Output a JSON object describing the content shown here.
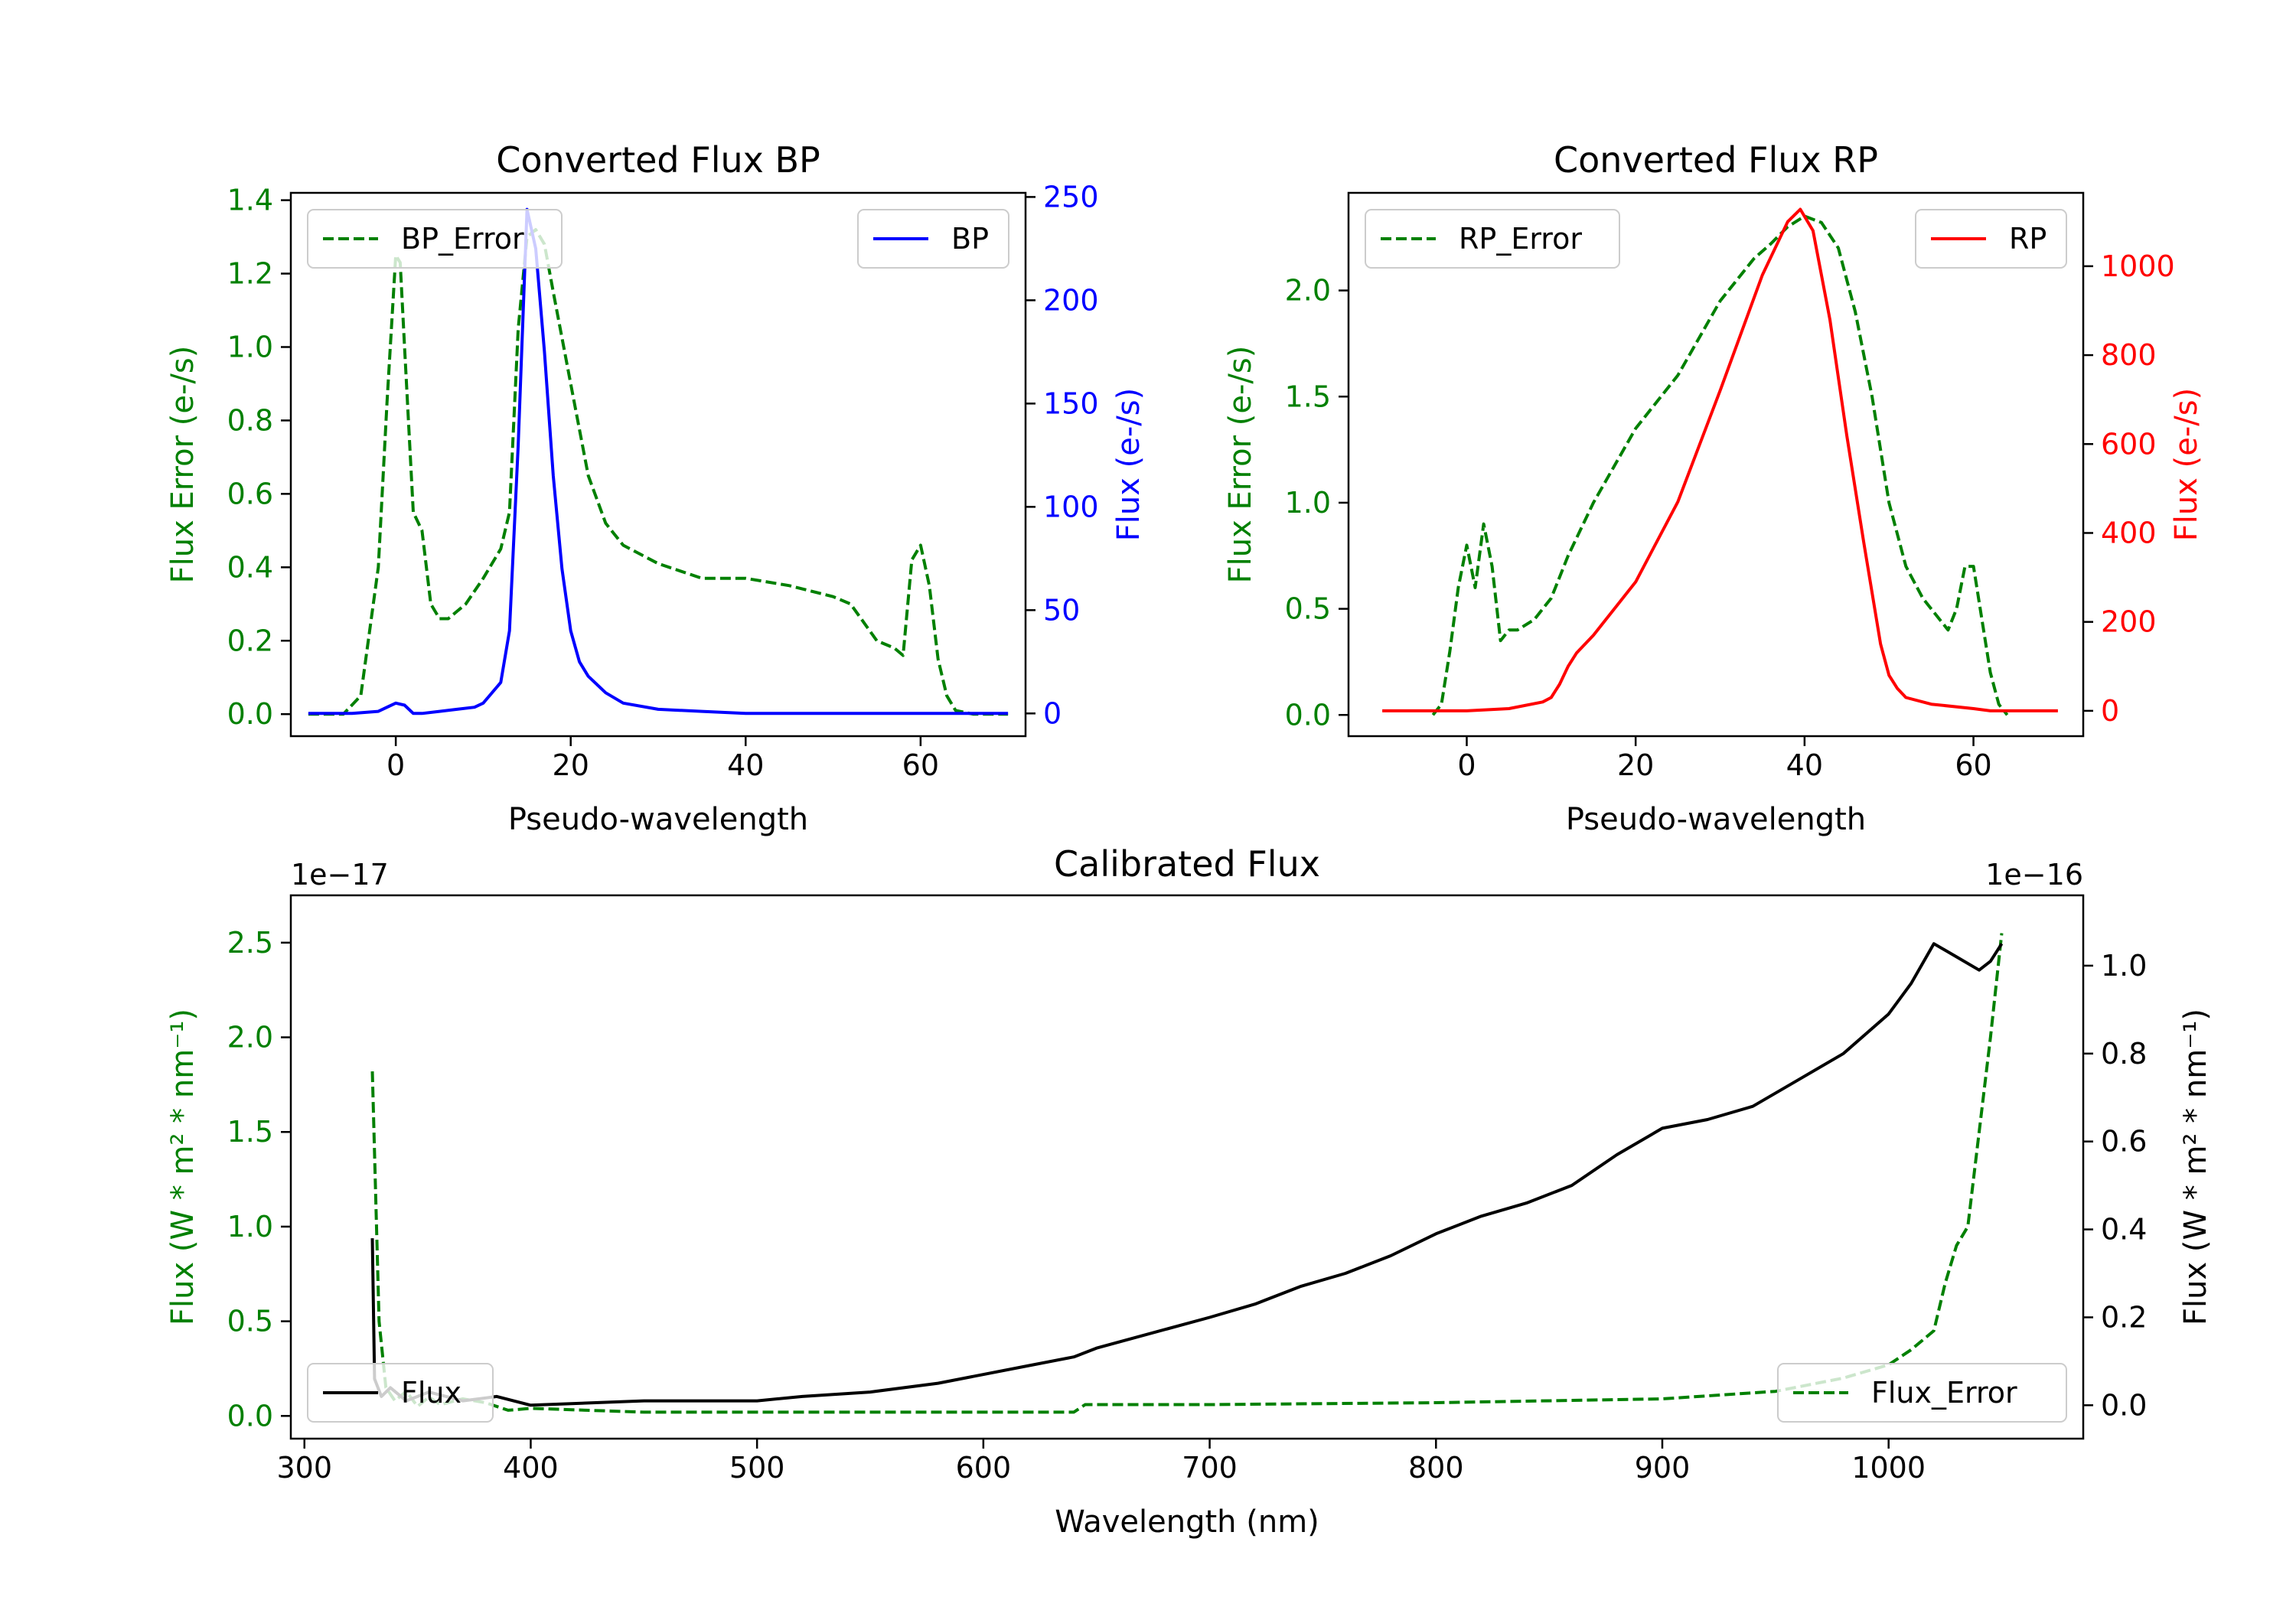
{
  "chart_data": [
    {
      "type": "line",
      "title": "Converted Flux BP",
      "xlabel": "Pseudo-wavelength",
      "ylabel_left": "Flux Error (e-/s)",
      "ylabel_right": "Flux (e-/s)",
      "xlim": [
        -12,
        72
      ],
      "ylim_left": [
        -0.06,
        1.42
      ],
      "ylim_right": [
        -11,
        252
      ],
      "xticks": [
        0,
        20,
        40,
        60
      ],
      "yticks_left": [
        0.0,
        0.2,
        0.4,
        0.6,
        0.8,
        1.0,
        1.2,
        1.4
      ],
      "yticks_left_labels": [
        "0.0",
        "0.2",
        "0.4",
        "0.6",
        "0.8",
        "1.0",
        "1.2",
        "1.4"
      ],
      "yticks_right": [
        0,
        50,
        100,
        150,
        200,
        250
      ],
      "yticks_right_labels": [
        "0",
        "50",
        "100",
        "150",
        "200",
        "250"
      ],
      "colors": {
        "left": "#008000",
        "right": "#0000ff"
      },
      "series": [
        {
          "name": "BP_Error",
          "axis": "left",
          "style": "dashed",
          "color": "#008000",
          "x": [
            -10,
            -6,
            -4,
            -2,
            -1,
            0,
            0.5,
            1,
            2,
            3,
            4,
            5,
            6,
            7,
            8,
            10,
            12,
            13,
            14,
            15,
            16,
            17,
            18,
            20,
            22,
            24,
            26,
            30,
            35,
            40,
            45,
            50,
            52,
            55,
            57,
            58,
            59,
            60,
            61,
            62,
            63,
            64,
            66,
            68,
            70
          ],
          "y": [
            0.0,
            0.0,
            0.05,
            0.4,
            0.85,
            1.25,
            1.23,
            1.0,
            0.55,
            0.5,
            0.3,
            0.26,
            0.26,
            0.28,
            0.3,
            0.37,
            0.45,
            0.55,
            1.05,
            1.3,
            1.32,
            1.28,
            1.15,
            0.9,
            0.65,
            0.52,
            0.46,
            0.41,
            0.37,
            0.37,
            0.35,
            0.32,
            0.3,
            0.2,
            0.18,
            0.16,
            0.42,
            0.46,
            0.35,
            0.15,
            0.05,
            0.01,
            0.0,
            0.0,
            0.0
          ]
        },
        {
          "name": "BP",
          "axis": "right",
          "style": "solid",
          "color": "#0000ff",
          "x": [
            -10,
            -5,
            -2,
            0,
            1,
            2,
            3,
            5,
            7,
            9,
            10,
            12,
            13,
            14,
            15,
            16,
            17,
            18,
            19,
            20,
            21,
            22,
            24,
            26,
            30,
            35,
            40,
            45,
            50,
            55,
            60,
            65,
            70
          ],
          "y": [
            0,
            0,
            1,
            5,
            4,
            0,
            0,
            1,
            2,
            3,
            5,
            15,
            40,
            130,
            244,
            225,
            175,
            115,
            70,
            40,
            25,
            18,
            10,
            5,
            2,
            1,
            0,
            0,
            0,
            0,
            0,
            0,
            0
          ]
        }
      ],
      "legend": [
        {
          "label": "BP_Error",
          "position": "upper-left"
        },
        {
          "label": "BP",
          "position": "upper-right"
        }
      ]
    },
    {
      "type": "line",
      "title": "Converted Flux RP",
      "xlabel": "Pseudo-wavelength",
      "ylabel_left": "Flux Error (e-/s)",
      "ylabel_right": "Flux (e-/s)",
      "xlim": [
        -14,
        73
      ],
      "ylim_left": [
        -0.1,
        2.46
      ],
      "ylim_right": [
        -57,
        1165
      ],
      "xticks": [
        0,
        20,
        40,
        60
      ],
      "yticks_left": [
        0.0,
        0.5,
        1.0,
        1.5,
        2.0
      ],
      "yticks_left_labels": [
        "0.0",
        "0.5",
        "1.0",
        "1.5",
        "2.0"
      ],
      "yticks_right": [
        0,
        200,
        400,
        600,
        800,
        1000
      ],
      "yticks_right_labels": [
        "0",
        "200",
        "400",
        "600",
        "800",
        "1000"
      ],
      "colors": {
        "left": "#008000",
        "right": "#ff0000"
      },
      "series": [
        {
          "name": "RP_Error",
          "axis": "left",
          "style": "dashed",
          "color": "#008000",
          "x": [
            -4,
            -3,
            -2,
            -1,
            0,
            1,
            2,
            3,
            4,
            5,
            6,
            8,
            10,
            12,
            15,
            20,
            25,
            30,
            34,
            36,
            38,
            40,
            42,
            44,
            46,
            48,
            50,
            52,
            54,
            56,
            57,
            58,
            59,
            60,
            61,
            62,
            63,
            64
          ],
          "y": [
            0.0,
            0.05,
            0.3,
            0.6,
            0.8,
            0.6,
            0.9,
            0.7,
            0.35,
            0.4,
            0.4,
            0.45,
            0.55,
            0.75,
            1.0,
            1.35,
            1.6,
            1.95,
            2.15,
            2.22,
            2.3,
            2.35,
            2.32,
            2.2,
            1.9,
            1.5,
            1.0,
            0.7,
            0.55,
            0.45,
            0.4,
            0.5,
            0.7,
            0.7,
            0.45,
            0.2,
            0.05,
            0.0
          ]
        },
        {
          "name": "RP",
          "axis": "right",
          "style": "solid",
          "color": "#ff0000",
          "x": [
            -10,
            -5,
            0,
            5,
            9,
            10,
            11,
            12,
            13,
            15,
            20,
            25,
            30,
            35,
            38,
            39.5,
            41,
            43,
            45,
            47,
            49,
            50,
            51,
            52,
            55,
            60,
            62,
            65,
            70
          ],
          "y": [
            0,
            0,
            0,
            5,
            20,
            30,
            60,
            100,
            130,
            170,
            290,
            470,
            720,
            980,
            1100,
            1128,
            1080,
            880,
            620,
            380,
            150,
            80,
            50,
            30,
            15,
            5,
            0,
            0,
            0
          ]
        }
      ],
      "legend": [
        {
          "label": "RP_Error",
          "position": "upper-left"
        },
        {
          "label": "RP",
          "position": "upper-right"
        }
      ]
    },
    {
      "type": "line",
      "title": "Calibrated Flux",
      "xlabel": "Wavelength (nm)",
      "ylabel_left": "Flux (W * m² * nm⁻¹)",
      "ylabel_right": "Flux (W * m² * nm⁻¹)",
      "offset_left": "1e−17",
      "offset_right": "1e−16",
      "xlim": [
        294,
        1086
      ],
      "ylim_left": [
        -0.12,
        2.75
      ],
      "ylim_right": [
        -0.076,
        1.16
      ],
      "xticks": [
        300,
        400,
        500,
        600,
        700,
        800,
        900,
        1000
      ],
      "yticks_left": [
        0.0,
        0.5,
        1.0,
        1.5,
        2.0,
        2.5
      ],
      "yticks_left_labels": [
        "0.0",
        "0.5",
        "1.0",
        "1.5",
        "2.0",
        "2.5"
      ],
      "yticks_right": [
        0.0,
        0.2,
        0.4,
        0.6,
        0.8,
        1.0
      ],
      "yticks_right_labels": [
        "0.0",
        "0.2",
        "0.4",
        "0.6",
        "0.8",
        "1.0"
      ],
      "colors": {
        "left": "#008000",
        "right": "#000000"
      },
      "series": [
        {
          "name": "Flux_Error",
          "axis": "left",
          "style": "dashed",
          "color": "#008000",
          "x": [
            330,
            333,
            336,
            340,
            345,
            350,
            355,
            360,
            370,
            380,
            390,
            400,
            450,
            500,
            550,
            600,
            640,
            645,
            700,
            800,
            900,
            950,
            980,
            1000,
            1010,
            1020,
            1025,
            1030,
            1035,
            1040,
            1045,
            1050
          ],
          "y": [
            1.82,
            0.5,
            0.15,
            0.08,
            0.13,
            0.05,
            0.1,
            0.06,
            0.09,
            0.07,
            0.03,
            0.04,
            0.02,
            0.02,
            0.02,
            0.02,
            0.02,
            0.06,
            0.06,
            0.07,
            0.09,
            0.13,
            0.2,
            0.27,
            0.35,
            0.45,
            0.7,
            0.9,
            1.0,
            1.5,
            2.0,
            2.55
          ]
        },
        {
          "name": "Flux",
          "axis": "right",
          "style": "solid",
          "color": "#000000",
          "x": [
            330,
            331,
            334,
            338,
            345,
            355,
            370,
            385,
            400,
            450,
            500,
            520,
            550,
            580,
            620,
            640,
            650,
            700,
            720,
            740,
            760,
            780,
            800,
            820,
            840,
            860,
            880,
            900,
            920,
            940,
            960,
            980,
            1000,
            1010,
            1020,
            1030,
            1040,
            1045,
            1050
          ],
          "y": [
            0.38,
            0.06,
            0.02,
            0.04,
            0.01,
            0.03,
            0.01,
            0.02,
            0.0,
            0.01,
            0.01,
            0.02,
            0.03,
            0.05,
            0.09,
            0.11,
            0.13,
            0.2,
            0.23,
            0.27,
            0.3,
            0.34,
            0.39,
            0.43,
            0.46,
            0.5,
            0.57,
            0.63,
            0.65,
            0.68,
            0.74,
            0.8,
            0.89,
            0.96,
            1.05,
            1.02,
            0.99,
            1.01,
            1.05
          ]
        }
      ],
      "legend": [
        {
          "label": "Flux",
          "position": "lower-left"
        },
        {
          "label": "Flux_Error",
          "position": "lower-right"
        }
      ]
    }
  ]
}
